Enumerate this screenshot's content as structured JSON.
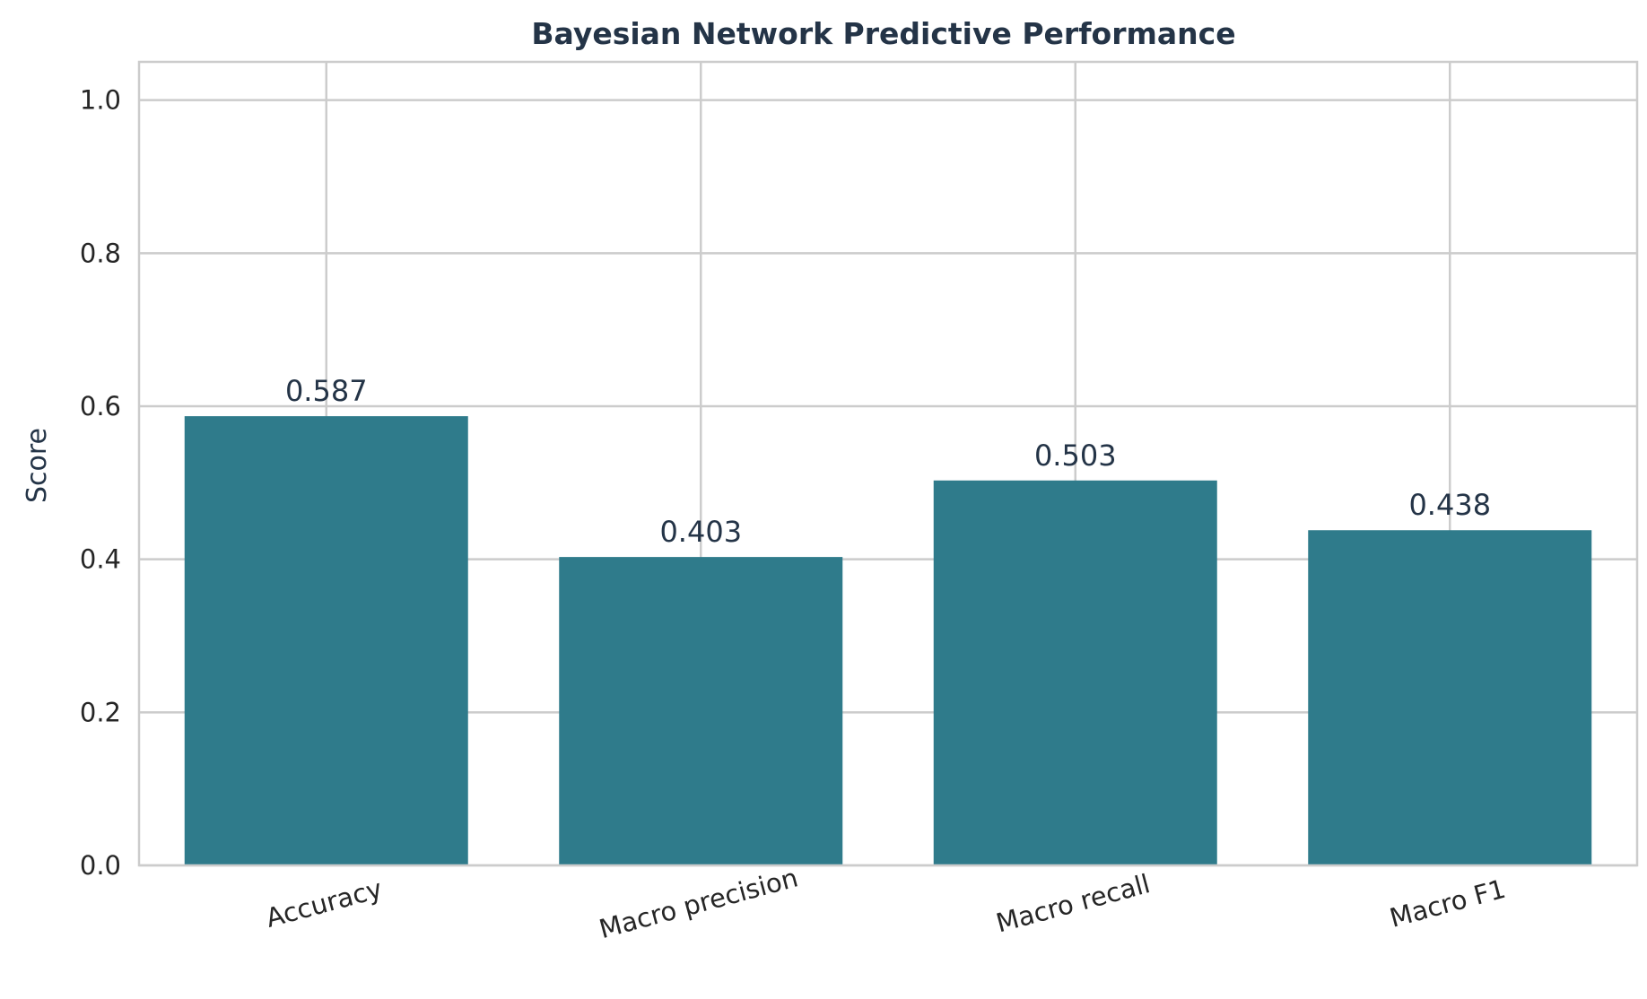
{
  "chart_data": {
    "type": "bar",
    "title": "Bayesian Network Predictive Performance",
    "xlabel": "",
    "ylabel": "Score",
    "categories": [
      "Accuracy",
      "Macro precision",
      "Macro recall",
      "Macro F1"
    ],
    "values": [
      0.587,
      0.403,
      0.503,
      0.438
    ],
    "value_labels": [
      "0.587",
      "0.403",
      "0.503",
      "0.438"
    ],
    "ylim": [
      0,
      1.05
    ],
    "yticks": [
      0.0,
      0.2,
      0.4,
      0.6,
      0.8,
      1.0
    ],
    "ytick_labels": [
      "0.0",
      "0.2",
      "0.4",
      "0.6",
      "0.8",
      "1.0"
    ],
    "grid": true,
    "legend": "none",
    "colors": {
      "bar": "#2f7b8b",
      "grid": "#cccccc",
      "frame": "#cccccc",
      "title": "#243447",
      "data_label": "#243447",
      "tick_label": "#262626"
    }
  }
}
